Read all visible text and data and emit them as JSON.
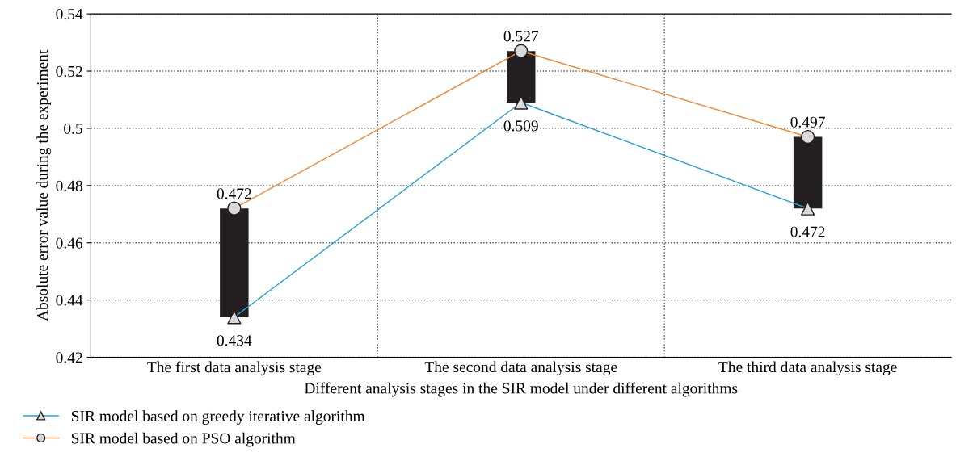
{
  "chart_data": {
    "type": "line",
    "xlabel": "Different analysis stages in the SIR model under different algorithms",
    "ylabel": "Absolute error value during the experiment",
    "categories": [
      "The first data analysis stage",
      "The second data analysis stage",
      "The third data analysis stage"
    ],
    "series": [
      {
        "type": "bar",
        "color": "#231f20",
        "base": [
          0.434,
          0.509,
          0.472
        ],
        "values": [
          0.038,
          0.018,
          0.025
        ]
      },
      {
        "name": "SIR model based on greedy iterative algorithm",
        "color": "#2b9fd8",
        "marker": "triangle",
        "values": [
          0.434,
          0.509,
          0.472
        ],
        "value_labels": [
          "0.434",
          "0.509",
          "0.472"
        ]
      },
      {
        "name": "SIR model based on PSO algorithm",
        "color": "#f28530",
        "marker": "circle",
        "values": [
          0.472,
          0.527,
          0.497
        ],
        "value_labels": [
          "0.472",
          "0.527",
          "0.497"
        ]
      }
    ],
    "ylim": [
      0.42,
      0.54
    ],
    "yticks": [
      0.42,
      0.44,
      0.46,
      0.48,
      0.5,
      0.52,
      0.54
    ],
    "grid": true,
    "legend": "bottom left"
  }
}
